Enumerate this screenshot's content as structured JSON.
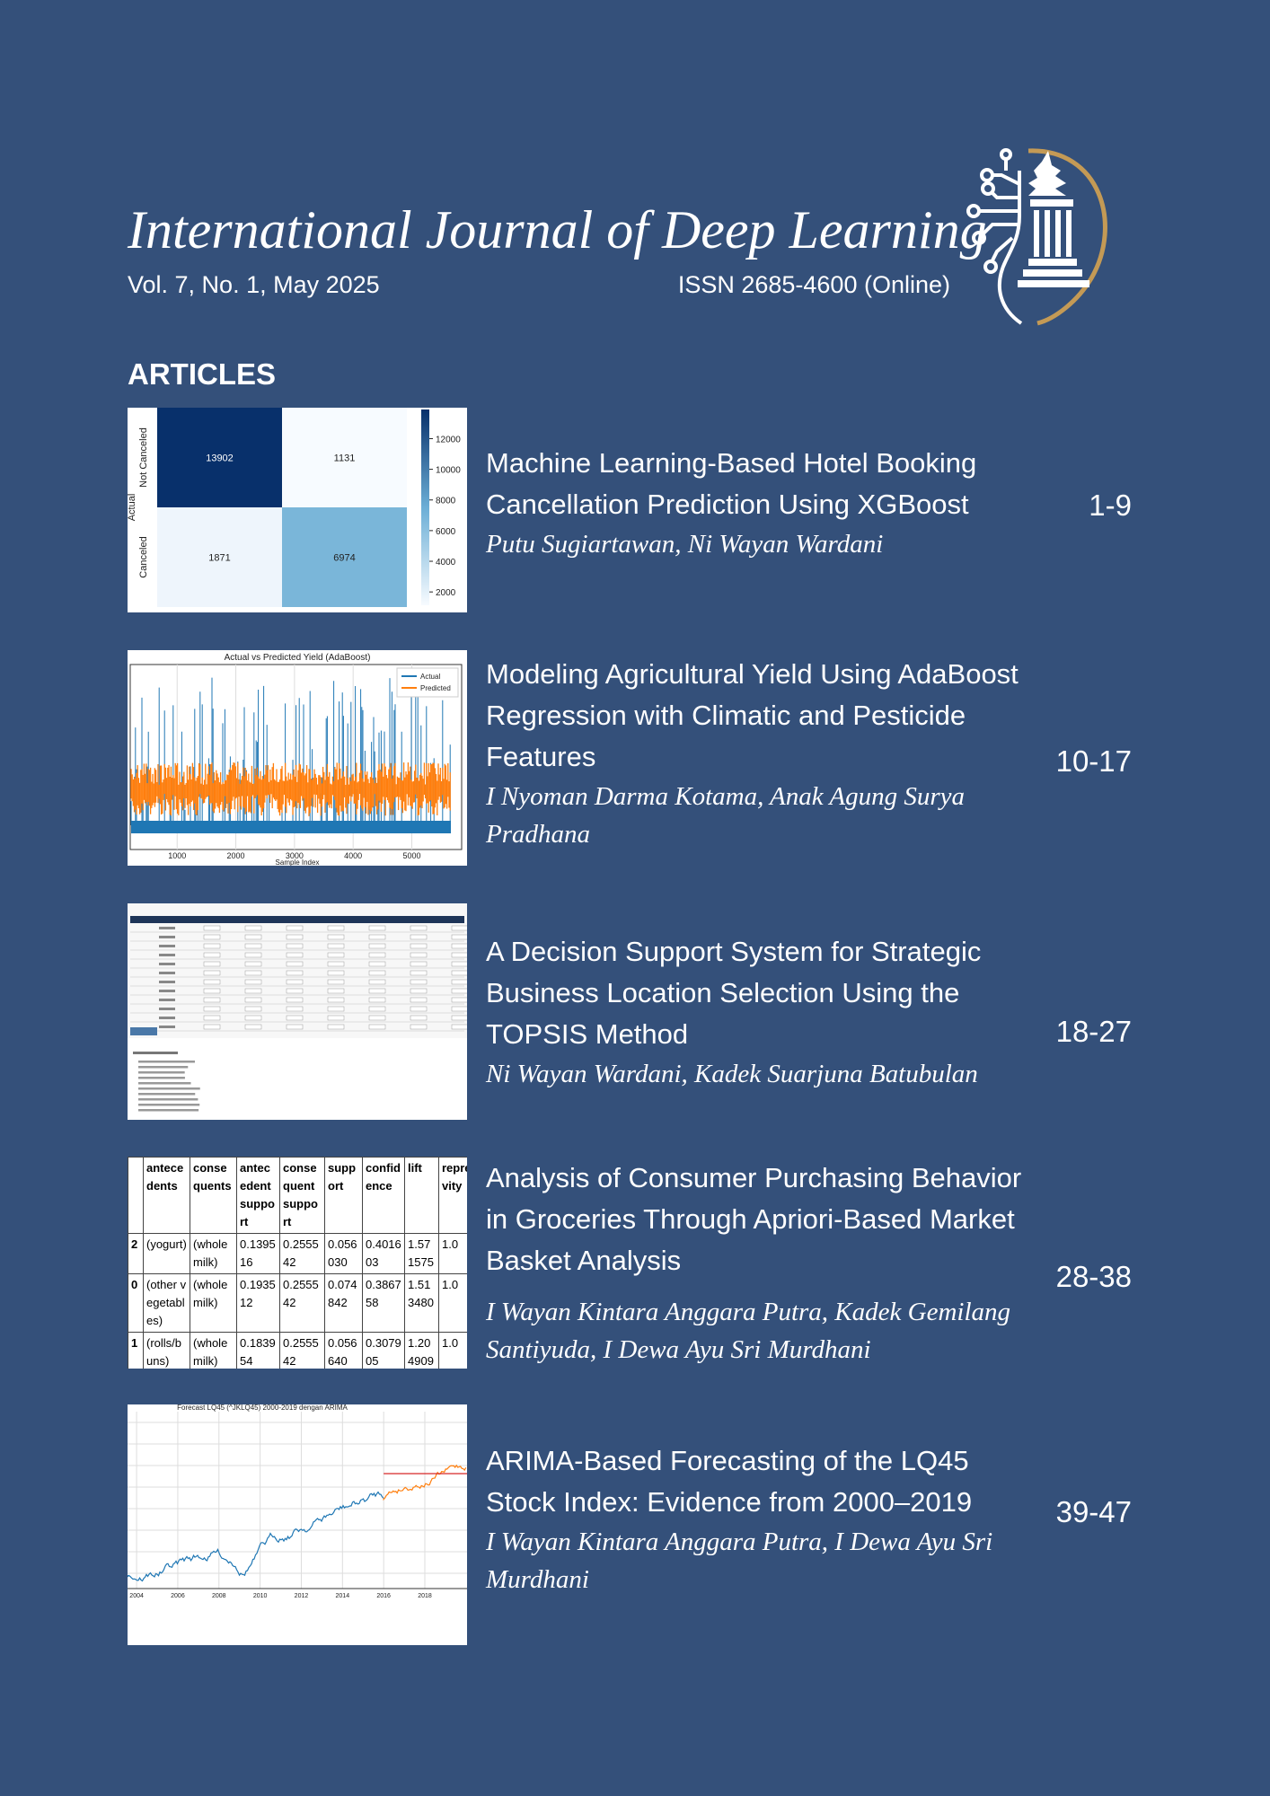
{
  "header": {
    "title": "International Journal of Deep Learning",
    "volume": "Vol. 7, No. 1, May 2025",
    "issn": "ISSN 2685-4600 (Online)"
  },
  "section": "ARTICLES",
  "articles": [
    {
      "title": "Machine Learning-Based Hotel Booking Cancellation Prediction Using XGBoost",
      "authors": "Putu Sugiartawan, Ni Wayan Wardani",
      "pages": "1-9",
      "thumbnail": {
        "row_labels": [
          "Not Canceled",
          "Canceled"
        ],
        "axis_label": "Actual",
        "cells": [
          [
            13902,
            1131
          ],
          [
            1871,
            6974
          ]
        ],
        "cell_colors": [
          [
            "#08306b",
            "#f7fbff"
          ],
          [
            "#eef5fc",
            "#7ab6d9"
          ]
        ],
        "clim": [
          1131,
          13902
        ],
        "cticks": [
          2000,
          4000,
          6000,
          8000,
          10000,
          12000
        ]
      }
    },
    {
      "title": "Modeling Agricultural Yield Using AdaBoost Regression with Climatic and Pesticide Features",
      "authors": "I Nyoman Darma Kotama, Anak Agung Surya Pradhana",
      "pages": "10-17",
      "thumbnail": {
        "title": "Actual vs Predicted Yield (AdaBoost)",
        "legend": [
          "Actual",
          "Predicted"
        ],
        "colors": [
          "#1f77b4",
          "#ff7f0e"
        ],
        "xlabel": "Sample Index",
        "xlim": [
          200,
          5850
        ],
        "xticks": [
          1000,
          2000,
          3000,
          4000,
          5000
        ]
      }
    },
    {
      "title": "A Decision Support System for Strategic Business Location Selection Using the TOPSIS Method",
      "authors": "Ni Wayan Wardani, Kadek Suarjuna Batubulan",
      "pages": "18-27"
    },
    {
      "title": "Analysis of Consumer Purchasing Behavior in Groceries Through Apriori-Based Market Basket Analysis",
      "authors": "I Wayan Kintara Anggara Putra, Kadek Gemilang Santiyuda, I Dewa Ayu Sri Murdhani",
      "pages": "28-38",
      "thumbnail": {
        "columns": [
          "",
          "antecedents",
          "consequents",
          "antecedent support",
          "consequent support",
          "support",
          "confidence",
          "lift",
          "representativity"
        ],
        "rows": [
          [
            "2",
            "(yogurt)",
            "(whole milk)",
            "0.139516",
            "0.255542",
            "0.056030",
            "0.401603",
            "1.571575",
            "1.0"
          ],
          [
            "0",
            "(other vegetables)",
            "(whole milk)",
            "0.193512",
            "0.255542",
            "0.074842",
            "0.386758",
            "1.513480",
            "1.0"
          ],
          [
            "1",
            "(rolls/buns)",
            "(whole milk)",
            "0.183954",
            "0.255542",
            "0.056640",
            "0.307905",
            "1.204909",
            "1.0"
          ]
        ]
      }
    },
    {
      "title": "ARIMA-Based Forecasting of the LQ45 Stock Index: Evidence from 2000–2019",
      "authors": "I Wayan Kintara Anggara Putra, I Dewa Ayu Sri Murdhani",
      "pages": "39-47",
      "thumbnail": {
        "title": "Forecast LQ45 (^JKLQ45) 2000-2019 dengan ARIMA",
        "xlim": [
          2003.56,
          2020.05
        ],
        "xticks": [
          2004,
          2006,
          2008,
          2010,
          2012,
          2014,
          2016,
          2018
        ]
      }
    }
  ]
}
